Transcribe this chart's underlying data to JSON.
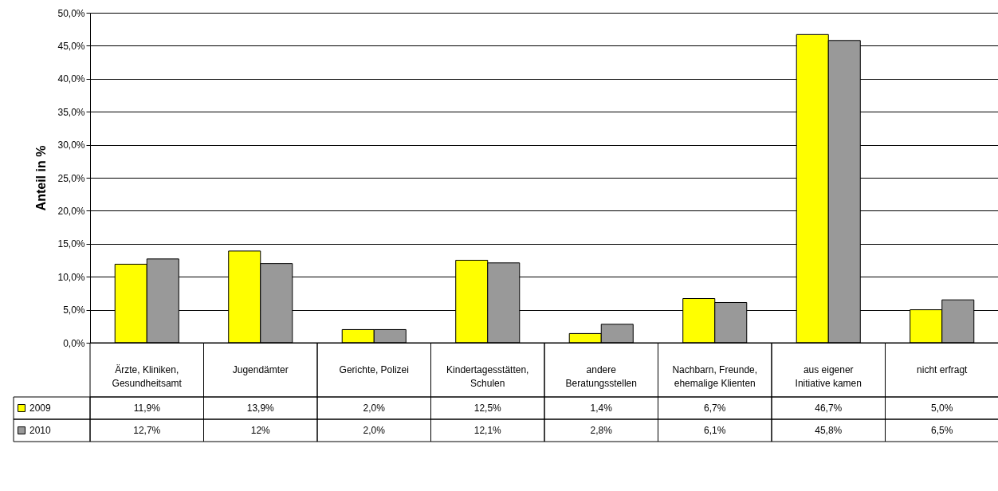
{
  "chart_data": {
    "type": "bar",
    "ylabel": "Anteil in %",
    "categories": [
      "Ärzte, Kliniken, Gesundheitsamt",
      "Jugendämter",
      "Gerichte, Polizei",
      "Kindertagesstätten, Schulen",
      "andere Beratungsstellen",
      "Nachbarn, Freunde, ehemalige Klienten",
      "aus eigener Initiative kamen",
      "nicht erfragt"
    ],
    "series": [
      {
        "name": "2009",
        "color": "#ffff00",
        "values": [
          11.9,
          13.9,
          2.0,
          12.5,
          1.4,
          6.7,
          46.7,
          5.0
        ],
        "value_labels": [
          "11,9%",
          "13,9%",
          "2,0%",
          "12,5%",
          "1,4%",
          "6,7%",
          "46,7%",
          "5,0%"
        ]
      },
      {
        "name": "2010",
        "color": "#999999",
        "values": [
          12.7,
          12,
          2.0,
          12.1,
          2.8,
          6.1,
          45.8,
          6.5
        ],
        "value_labels": [
          "12,7%",
          "12%",
          "2,0%",
          "12,1%",
          "2,8%",
          "6,1%",
          "45,8%",
          "6,5%"
        ]
      }
    ],
    "ylim": [
      0,
      50
    ],
    "yticks": [
      {
        "value": 0,
        "label": "0,0%"
      },
      {
        "value": 5,
        "label": "5,0%"
      },
      {
        "value": 10,
        "label": "10,0%"
      },
      {
        "value": 15,
        "label": "15,0%"
      },
      {
        "value": 20,
        "label": "20,0%"
      },
      {
        "value": 25,
        "label": "25,0%"
      },
      {
        "value": 30,
        "label": "30,0%"
      },
      {
        "value": 35,
        "label": "35,0%"
      },
      {
        "value": 40,
        "label": "40,0%"
      },
      {
        "value": 45,
        "label": "45,0%"
      },
      {
        "value": 50,
        "label": "50,0%"
      }
    ],
    "grid": "y",
    "legend": "bottom"
  }
}
